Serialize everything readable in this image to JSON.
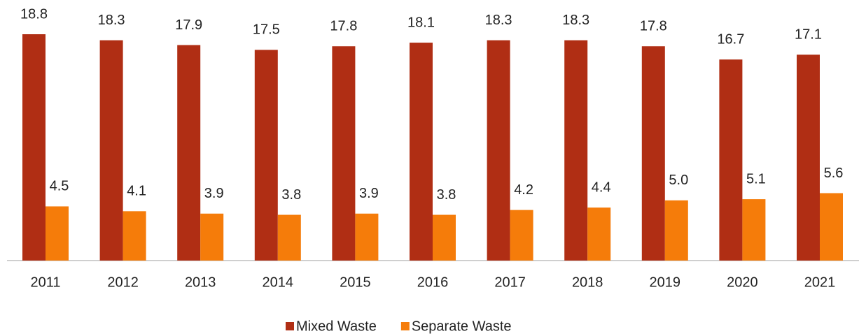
{
  "chart_data": {
    "type": "bar",
    "categories": [
      "2011",
      "2012",
      "2013",
      "2014",
      "2015",
      "2016",
      "2017",
      "2018",
      "2019",
      "2020",
      "2021"
    ],
    "series": [
      {
        "name": "Mixed Waste",
        "color": "#b02e14",
        "values": [
          18.8,
          18.3,
          17.9,
          17.5,
          17.8,
          18.1,
          18.3,
          18.3,
          17.8,
          16.7,
          17.1
        ]
      },
      {
        "name": "Separate Waste",
        "color": "#f57c0a",
        "values": [
          4.5,
          4.1,
          3.9,
          3.8,
          3.9,
          3.8,
          4.2,
          4.4,
          5.0,
          5.1,
          5.6
        ],
        "value_labels": [
          "4.5",
          "4.1",
          "3.9",
          "3.8",
          "3.9",
          "3.8",
          "4.2",
          "4.4",
          "5.0",
          "5.1",
          "5.6"
        ]
      }
    ],
    "legend": "bottom"
  }
}
